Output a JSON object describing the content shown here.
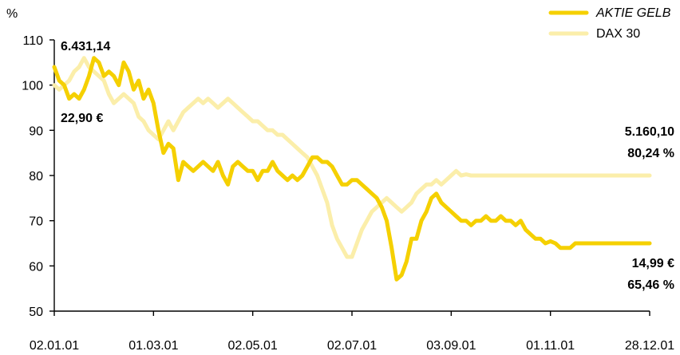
{
  "chart_data": {
    "type": "line",
    "unit_label": "%",
    "ylim": [
      50,
      110
    ],
    "yticks": [
      50,
      60,
      70,
      80,
      90,
      100,
      110
    ],
    "xticks": [
      "02.01.01",
      "01.03.01",
      "02.05.01",
      "02.07.01",
      "03.09.01",
      "01.11.01",
      "28.12.01"
    ],
    "grid": false,
    "legend_position": "top-right",
    "colors": {
      "aktie": "#f5d000",
      "dax": "#fbeeaa"
    },
    "series": [
      {
        "name": "AKTIE GELB",
        "key": "aktie",
        "x": [
          0,
          3,
          6,
          9,
          12,
          15,
          18,
          21,
          24,
          27,
          30,
          33,
          36,
          39,
          42,
          45,
          48,
          51,
          54,
          57,
          60,
          63,
          66,
          69,
          72,
          75,
          78,
          81,
          84,
          87,
          90,
          93,
          96,
          99,
          102,
          105,
          108,
          111,
          114,
          117,
          120,
          123,
          126,
          129,
          132,
          135,
          138,
          141,
          144,
          147,
          150,
          153,
          156,
          159,
          162,
          165,
          168,
          171,
          174,
          177,
          180,
          183,
          186,
          189,
          192,
          195,
          198,
          201,
          204,
          207,
          210,
          213,
          216,
          219,
          222,
          225,
          228,
          231,
          234,
          237,
          240,
          243,
          246,
          249,
          252,
          255,
          258,
          261,
          264,
          267,
          270,
          273,
          276,
          279,
          282,
          285,
          288,
          291,
          294,
          297,
          300,
          303,
          306,
          309,
          312,
          315,
          318,
          321,
          324,
          327,
          330,
          333,
          336,
          339,
          342,
          345,
          348,
          351,
          354,
          357,
          360
        ],
        "values": [
          104,
          101,
          100,
          97,
          98,
          97,
          99,
          102,
          106,
          105,
          102,
          103,
          102,
          100,
          105,
          103,
          99,
          101,
          97,
          99,
          96,
          90,
          85,
          87,
          86,
          79,
          83,
          82,
          81,
          82,
          83,
          82,
          81,
          83,
          80,
          78,
          82,
          83,
          82,
          81,
          81,
          79,
          81,
          81,
          83,
          81,
          80,
          79,
          80,
          79,
          80,
          82,
          84,
          84,
          83,
          83,
          82,
          80,
          78,
          78,
          79,
          79,
          78,
          77,
          76,
          75,
          73,
          70,
          64,
          57,
          58,
          61,
          66,
          66,
          70,
          72,
          75,
          76,
          74,
          73,
          72,
          71,
          70,
          70,
          69,
          70,
          70,
          71,
          70,
          70,
          71,
          70,
          70,
          69,
          70,
          68,
          67,
          66,
          66,
          65,
          65.46,
          65,
          64,
          64,
          64,
          65,
          65,
          65,
          65,
          65,
          65,
          65,
          65,
          65,
          65,
          65,
          65,
          65,
          65,
          65,
          65
        ]
      },
      {
        "name": "DAX 30",
        "key": "dax",
        "x": [
          0,
          3,
          6,
          9,
          12,
          15,
          18,
          21,
          24,
          27,
          30,
          33,
          36,
          39,
          42,
          45,
          48,
          51,
          54,
          57,
          60,
          63,
          66,
          69,
          72,
          75,
          78,
          81,
          84,
          87,
          90,
          93,
          96,
          99,
          102,
          105,
          108,
          111,
          114,
          117,
          120,
          123,
          126,
          129,
          132,
          135,
          138,
          141,
          144,
          147,
          150,
          153,
          156,
          159,
          162,
          165,
          168,
          171,
          174,
          177,
          180,
          183,
          186,
          189,
          192,
          195,
          198,
          201,
          204,
          207,
          210,
          213,
          216,
          219,
          222,
          225,
          228,
          231,
          234,
          237,
          240,
          243,
          246,
          249,
          252,
          255,
          258,
          261,
          264,
          267,
          270,
          273,
          276,
          279,
          282,
          285,
          288,
          291,
          294,
          297,
          300,
          303,
          306,
          309,
          312,
          315,
          318,
          321,
          324,
          327,
          330,
          333,
          336,
          339,
          342,
          345,
          348,
          351,
          354,
          357,
          360
        ],
        "values": [
          100,
          99,
          100,
          101,
          103,
          104,
          106,
          104,
          103,
          102,
          101,
          98,
          96,
          97,
          98,
          97,
          96,
          93,
          92,
          90,
          89,
          88,
          90,
          92,
          90,
          92,
          94,
          95,
          96,
          97,
          96,
          97,
          96,
          95,
          96,
          97,
          96,
          95,
          94,
          93,
          92,
          92,
          91,
          90,
          90,
          89,
          89,
          88,
          87,
          86,
          85,
          84,
          82,
          80,
          77,
          74,
          69,
          66,
          64,
          62,
          62,
          65,
          68,
          70,
          72,
          73,
          74,
          75,
          74,
          73,
          72,
          73,
          74,
          76,
          77,
          78,
          78,
          79,
          78,
          79,
          80,
          81,
          80,
          80.24,
          80,
          80,
          80,
          80,
          80,
          80,
          80,
          80,
          80,
          80,
          80,
          80,
          80,
          80,
          80,
          80,
          80,
          80,
          80,
          80,
          80,
          80,
          80,
          80,
          80,
          80,
          80,
          80,
          80,
          80,
          80,
          80,
          80,
          80,
          80,
          80,
          80
        ]
      }
    ],
    "annotations": {
      "aktie_start_value": "6.431,14",
      "aktie_start_price": "22,90 €",
      "dax_end_value": "5.160,10",
      "dax_end_pct": "80,24 %",
      "aktie_end_price": "14,99 €",
      "aktie_end_pct": "65,46 %"
    }
  }
}
